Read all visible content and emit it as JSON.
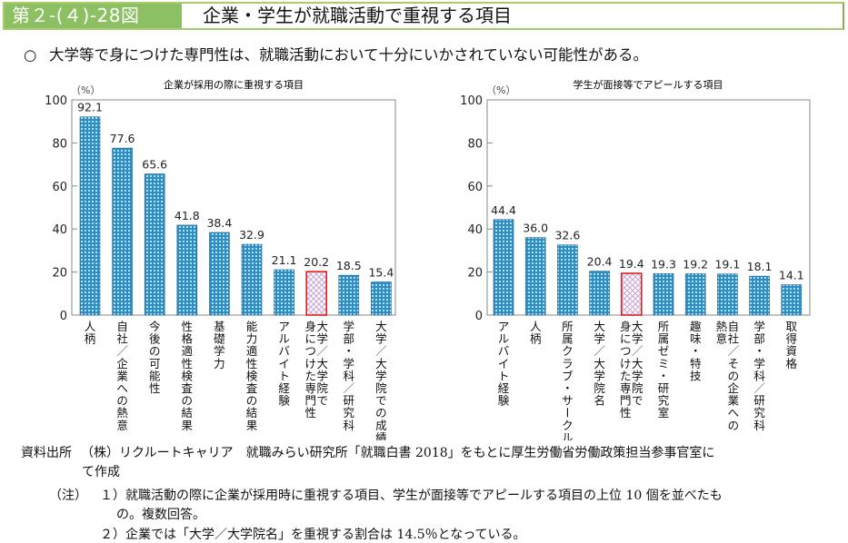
{
  "header": {
    "figure_number": "第２-(４)-28図",
    "title": "企業・学生が就職活動で重視する項目"
  },
  "summary": {
    "bullet": "○",
    "text": "大学等で身につけた専門性は、就職活動において十分にいかされていない可能性がある。"
  },
  "colors": {
    "bar_fill": "#2b8fc7",
    "bar_highlight_fill": "#c9a6d6",
    "bar_highlight_stroke": "#e02020",
    "title_green": "#8cc063",
    "frame": "#888888"
  },
  "chart_data": [
    {
      "type": "bar",
      "title": "企業が採用の際に重視する項目",
      "ylabel": "（%）",
      "xlabel": "",
      "ylim": [
        0,
        100
      ],
      "yticks": [
        0,
        20,
        40,
        60,
        80,
        100
      ],
      "grid": false,
      "categories": [
        "人柄",
        "自社／企業への熱意",
        "今後の可能性",
        "性格適性検査の結果",
        "基礎学力",
        "能力適性検査の結果",
        "アルバイト経験",
        "大学／大学院で身につけた専門性",
        "学部・学科／研究科",
        "大学／大学院での成績"
      ],
      "category_lines": [
        [
          "人柄"
        ],
        [
          "自社／企業への熱意"
        ],
        [
          "今後の可能性"
        ],
        [
          "性格適性検査の結果"
        ],
        [
          "基礎学力"
        ],
        [
          "能力適性検査の結果"
        ],
        [
          "アルバイト経験"
        ],
        [
          "大学／大学院で",
          "身につけた専門性"
        ],
        [
          "学部・学科／研究科"
        ],
        [
          "大学／大学院での成績"
        ]
      ],
      "values": [
        92.1,
        77.6,
        65.6,
        41.8,
        38.4,
        32.9,
        21.1,
        20.2,
        18.5,
        15.4
      ],
      "value_labels": [
        "92.1",
        "77.6",
        "65.6",
        "41.8",
        "38.4",
        "32.9",
        "21.1",
        "20.2",
        "18.5",
        "15.4"
      ],
      "highlight_index": 7
    },
    {
      "type": "bar",
      "title": "学生が面接等でアピールする項目",
      "ylabel": "（%）",
      "xlabel": "",
      "ylim": [
        0,
        100
      ],
      "yticks": [
        0,
        20,
        40,
        60,
        80,
        100
      ],
      "grid": false,
      "categories": [
        "アルバイト経験",
        "人柄",
        "所属クラブ・サークル",
        "大学／大学院名",
        "大学／大学院で身につけた専門性",
        "所属ゼミ・研究室",
        "趣味・特技",
        "自社／その企業への熱意",
        "学部・学科／研究科",
        "取得資格"
      ],
      "category_lines": [
        [
          "アルバイト経験"
        ],
        [
          "人柄"
        ],
        [
          "所属クラブ・サークル"
        ],
        [
          "大学／大学院名"
        ],
        [
          "大学／大学院で",
          "身につけた専門性"
        ],
        [
          "所属ゼミ・研究室"
        ],
        [
          "趣味・特技"
        ],
        [
          "自社／その企業への",
          "熱意"
        ],
        [
          "学部・学科／研究科"
        ],
        [
          "取得資格"
        ]
      ],
      "values": [
        44.4,
        36.0,
        32.6,
        20.4,
        19.4,
        19.3,
        19.2,
        19.1,
        18.1,
        14.1
      ],
      "value_labels": [
        "44.4",
        "36.0",
        "32.6",
        "20.4",
        "19.4",
        "19.3",
        "19.2",
        "19.1",
        "18.1",
        "14.1"
      ],
      "highlight_index": 4
    }
  ],
  "notes": {
    "source_label": "資料出所",
    "source_text_1": "（株）リクルートキャリア　就職みらい研究所「就職白書 2018」をもとに厚生労働省労働政策担当参事官室に",
    "source_text_2": "て作成",
    "note_label": "（注）",
    "note1_num": "１）",
    "note1_text_1": "就職活動の際に企業が採用時に重視する項目、学生が面接等でアピールする項目の上位 10 個を並べたも",
    "note1_text_2": "の。複数回答。",
    "note2_num": "２）",
    "note2_text": "企業では「大学／大学院名」を重視する割合は 14.5％となっている。"
  }
}
